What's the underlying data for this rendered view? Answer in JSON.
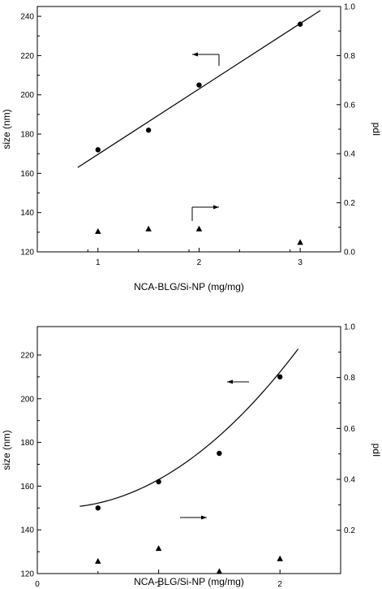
{
  "chart_data": [
    {
      "type": "scatter",
      "title": "",
      "xlabel": "NCA-BLG/Si-NP (mg/mg)",
      "ylabel": "size (nm)",
      "y2label": "pdI",
      "xlim": [
        0.4,
        3.4
      ],
      "ylim": [
        120,
        245
      ],
      "y2lim": [
        0,
        1.0
      ],
      "xticks": [
        1,
        2,
        3
      ],
      "yticks": [
        120,
        140,
        160,
        180,
        200,
        220,
        240
      ],
      "y2ticks": [
        0.0,
        0.2,
        0.4,
        0.6,
        0.8,
        1.0
      ],
      "series": [
        {
          "axis": "left",
          "marker": "circle",
          "x": [
            1,
            1.5,
            2,
            3
          ],
          "y": [
            172,
            182,
            205,
            236
          ],
          "fit": {
            "kind": "linear",
            "x": [
              0.8,
              3.2
            ],
            "y": [
              163,
              243
            ]
          }
        },
        {
          "axis": "right",
          "marker": "triangle",
          "x": [
            1,
            1.5,
            2,
            3
          ],
          "y": [
            0.085,
            0.095,
            0.095,
            0.04
          ]
        }
      ],
      "arrows": [
        {
          "direction": "left",
          "points_to": "size (nm)"
        },
        {
          "direction": "right",
          "points_to": "pdI"
        }
      ],
      "xticklabels": [
        "1",
        "2",
        "3"
      ],
      "xticklabels_x": [
        1,
        2,
        3
      ]
    },
    {
      "type": "scatter",
      "title": "",
      "xlabel": "NCA-BLG/Si-NP (mg/mg)",
      "ylabel": "size (nm)",
      "y2label": "pdI",
      "xlim": [
        0,
        2.5
      ],
      "ylim": [
        120,
        233
      ],
      "y2lim": [
        0.03,
        1.0
      ],
      "xticks": [
        0,
        1,
        2
      ],
      "yticks": [
        120,
        140,
        160,
        180,
        200,
        220
      ],
      "y2ticks": [
        0.2,
        0.4,
        0.6,
        0.8,
        1.0
      ],
      "series": [
        {
          "axis": "left",
          "marker": "circle",
          "x": [
            0.5,
            1.0,
            1.5,
            2.0
          ],
          "y": [
            150,
            162,
            175,
            210
          ],
          "fit": {
            "kind": "quadratic",
            "x_range": [
              0.35,
              2.15
            ],
            "coeffs": [
              150.62,
              -6.0,
              18.4
            ]
          }
        },
        {
          "axis": "right",
          "marker": "triangle",
          "x": [
            0.5,
            1.0,
            1.5,
            2.0
          ],
          "y": [
            0.08,
            0.13,
            0.04,
            0.09
          ]
        }
      ],
      "arrows": [
        {
          "direction": "left",
          "points_to": "size (nm)"
        },
        {
          "direction": "right",
          "points_to": "pdI"
        }
      ]
    }
  ]
}
